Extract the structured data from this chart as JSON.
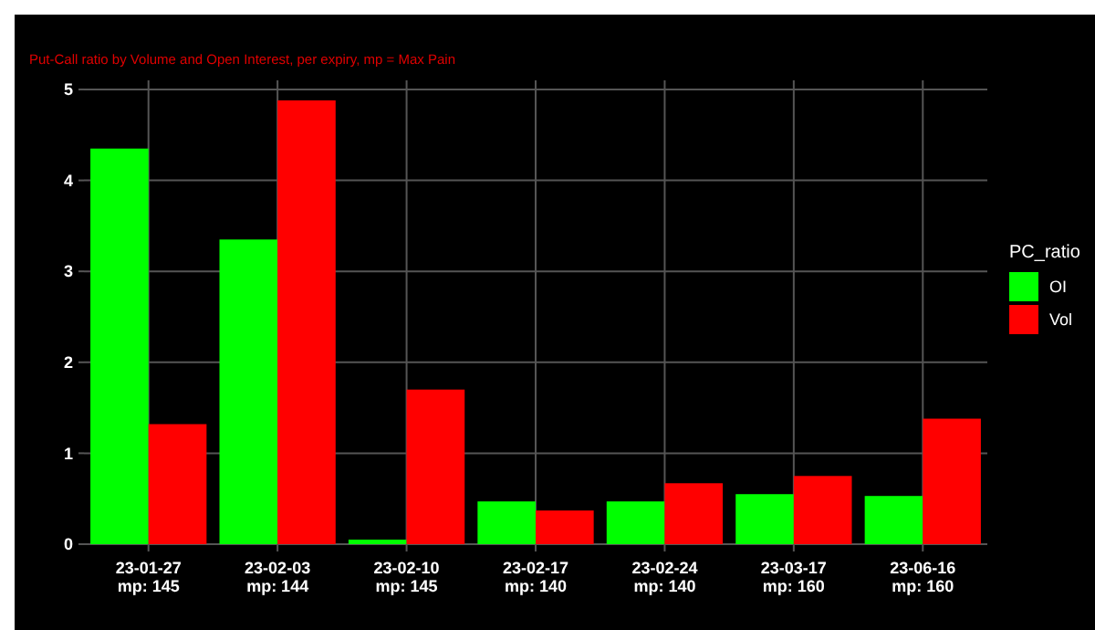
{
  "chart_data": {
    "type": "bar",
    "subtitle": "Put-Call ratio by Volume and Open Interest, per expiry, mp = Max Pain",
    "categories": [
      "23-01-27\nmp: 145",
      "23-02-03\nmp: 144",
      "23-02-10\nmp: 145",
      "23-02-17\nmp: 140",
      "23-02-24\nmp: 140",
      "23-03-17\nmp: 160",
      "23-06-16\nmp: 160"
    ],
    "series": [
      {
        "name": "OI",
        "color": "#00ff00",
        "values": [
          4.35,
          3.35,
          0.05,
          0.47,
          0.47,
          0.55,
          0.53
        ]
      },
      {
        "name": "Vol",
        "color": "#ff0000",
        "values": [
          1.32,
          4.88,
          1.7,
          0.37,
          0.67,
          0.75,
          1.38
        ]
      }
    ],
    "legend_title": "PC_ratio",
    "legend": "right",
    "ylim": [
      0,
      5.1
    ],
    "yticks": [
      0,
      1,
      2,
      3,
      4,
      5
    ],
    "grid": true
  }
}
